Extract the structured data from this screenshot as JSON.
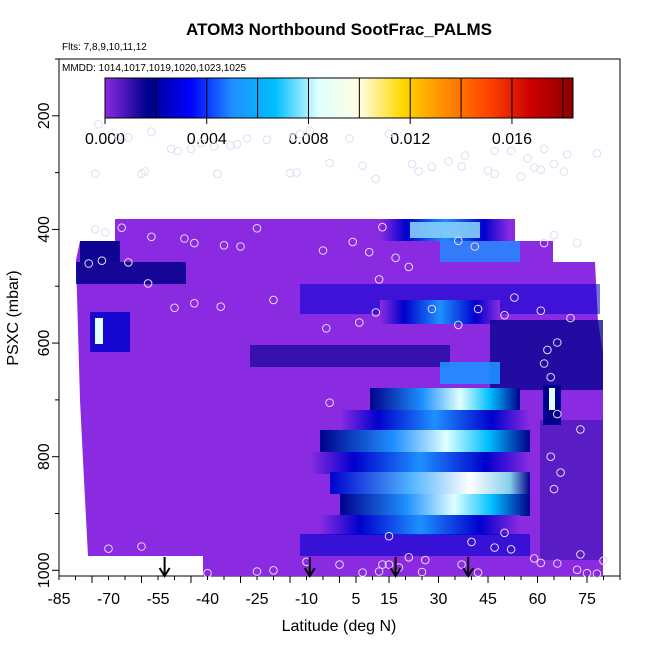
{
  "chart_data": {
    "type": "heatmap",
    "title": "ATOM3 Northbound SootFrac_PALMS",
    "subtitle_flights": "Flts: 7,8,9,10,11,12",
    "subtitle_dates": "MMDD: 1014,1017,1019,1020,1023,1025",
    "xlabel": "Latitude (deg N)",
    "ylabel": "PSXC (mbar)",
    "xlim": [
      -85,
      85
    ],
    "ylim": [
      1010,
      100
    ],
    "x_ticks": [
      -85,
      -70,
      -55,
      -40,
      -25,
      -10,
      5,
      15,
      30,
      45,
      60,
      75
    ],
    "y_ticks": [
      200,
      400,
      600,
      800,
      1000
    ],
    "colorbar": {
      "range": [
        0.0,
        0.0184
      ],
      "tick_values": [
        0.0,
        0.004,
        0.008,
        0.012,
        0.016
      ],
      "tick_labels": [
        "0.000",
        "0.004",
        "0.008",
        "0.012",
        "0.016"
      ]
    },
    "value_field_description": "Soot fraction binned by latitude and pressure; sampled cells near 0 over most of domain, enhanced (~0.004-0.009) between 10N and 50N at 600-850 mbar",
    "arrows_latitude": [
      -53,
      -9,
      17,
      39
    ],
    "grid": false,
    "legend": "colorbar-top"
  },
  "colors": {
    "background": "#ffffff",
    "base_field": "#8a2be2",
    "scale": [
      "#8a2be2",
      "#00008b",
      "#0000ff",
      "#1e90ff",
      "#00bfff",
      "#e0ffff",
      "#ffffe0",
      "#ffd700",
      "#ff8c00",
      "#ff4500",
      "#cc0000",
      "#8b0000"
    ]
  }
}
